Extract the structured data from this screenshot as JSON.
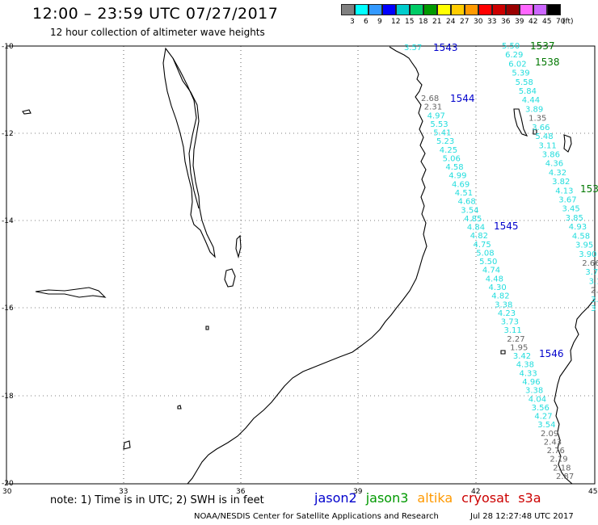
{
  "header": {
    "title": "12:00 – 23:59 UTC 07/27/2017",
    "subtitle": "12 hour collection of altimeter wave heights"
  },
  "scale": {
    "colors": [
      "#808080",
      "#00ffff",
      "#3399ff",
      "#0000ff",
      "#00cccc",
      "#00cc66",
      "#009900",
      "#ffff00",
      "#ffcc00",
      "#ff9900",
      "#ff0000",
      "#cc0000",
      "#990000",
      "#ff66ff",
      "#cc66ff",
      "#000000"
    ],
    "labels": [
      "3",
      "6",
      "9",
      "12",
      "15",
      "18",
      "21",
      "24",
      "27",
      "30",
      "33",
      "36",
      "39",
      "42",
      "45",
      "70",
      "(ft)"
    ]
  },
  "map": {
    "lat_labels": [
      "-10",
      "-12",
      "-14",
      "-16",
      "-18",
      "-20"
    ],
    "lon_labels": [
      "30",
      "33",
      "36",
      "39",
      "42",
      "45"
    ]
  },
  "tracks": [
    {
      "id": "1543",
      "satellite": "jason2",
      "color": "#0000cc",
      "values": [
        "3.57"
      ]
    },
    {
      "id": "1544",
      "satellite": "jason2",
      "color": "#0000cc",
      "values": [
        "2.68",
        "2.31",
        "4.97",
        "5.53",
        "5.41",
        "5.23",
        "4.25",
        "5.06",
        "4.58",
        "4.99",
        "4.69",
        "4.51",
        "4.68",
        "3.54",
        "4.85",
        "4.84",
        "4.82",
        "4.75",
        "5.08",
        "5.50",
        "4.74",
        "4.48",
        "4.30",
        "4.82",
        "3.38",
        "4.23",
        "3.73",
        "3.11",
        "2.27",
        "1.95",
        "3.42",
        "4.38",
        "4.33",
        "4.96",
        "3.38",
        "4.04",
        "3.56",
        "4.27",
        "3.54",
        "2.09",
        "2.43",
        "2.76",
        "2.19",
        "2.18",
        "2.87"
      ]
    },
    {
      "id": "1545",
      "satellite": "jason2",
      "color": "#0000cc",
      "values": []
    },
    {
      "id": "1546",
      "satellite": "jason2",
      "color": "#0000cc",
      "values": []
    },
    {
      "id": "1537",
      "satellite": "jason3",
      "color": "#007700",
      "values": [
        "5.50",
        "6.29",
        "6.02",
        "5.39",
        "5.58",
        "5.84",
        "4.44",
        "3.89",
        "1.35",
        "3.66",
        "5.48",
        "3.11",
        "3.86",
        "4.36",
        "4.32",
        "3.82",
        "4.13",
        "3.67",
        "3.45",
        "3.85",
        "4.93",
        "4.58",
        "3.95",
        "3.90",
        "2.66",
        "3.70",
        "3.14",
        "2.9",
        "3.",
        "3"
      ]
    },
    {
      "id": "1538",
      "satellite": "jason3",
      "color": "#007700",
      "values": []
    },
    {
      "id": "153",
      "satellite": "jason3",
      "color": "#007700",
      "values": []
    }
  ],
  "legend": {
    "note": "note: 1) Time is in UTC; 2) SWH is in feet",
    "satellites": [
      {
        "name": "jason2",
        "color": "#0000cc"
      },
      {
        "name": "jason3",
        "color": "#009900"
      },
      {
        "name": "altika",
        "color": "#ff9900"
      },
      {
        "name": "cryosat",
        "color": "#cc0000"
      },
      {
        "name": "s3a",
        "color": "#cc0000"
      }
    ]
  },
  "footer": {
    "credit": "NOAA/NESDIS Center for Satellite Applications and Research",
    "timestamp": "Jul 28 12:27:48 UTC 2017"
  }
}
